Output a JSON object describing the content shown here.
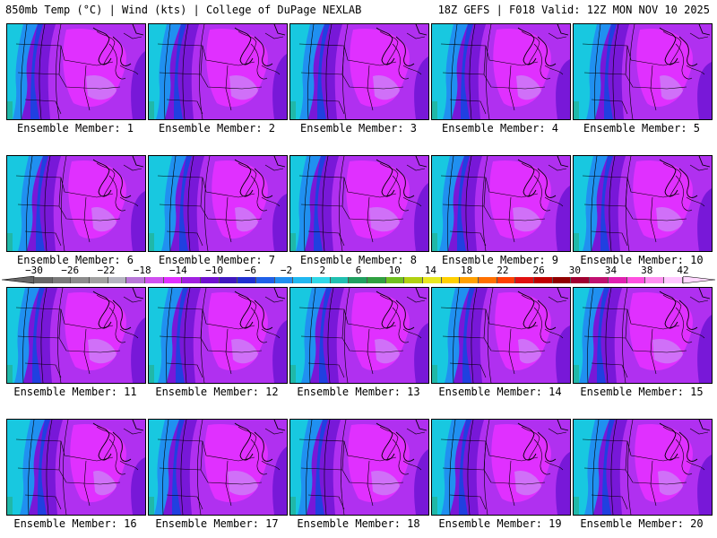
{
  "header": {
    "title_left": "850mb Temp (°C) | Wind (kts) | College of DuPage NEXLAB",
    "title_right": "18Z GEFS | F018 Valid: 12Z MON NOV 10 2025"
  },
  "colorbar": {
    "labels": [
      "−30",
      "−26",
      "−22",
      "−18",
      "−14",
      "−10",
      "−6",
      "−2",
      "2",
      "6",
      "10",
      "14",
      "18",
      "22",
      "26",
      "30",
      "34",
      "38",
      "42"
    ],
    "colors": [
      "#666666",
      "#7a7a7a",
      "#8c8c8c",
      "#a0a0a0",
      "#b4b4c0",
      "#b878d8",
      "#d050f0",
      "#e030ff",
      "#a020e0",
      "#7010d0",
      "#4018c0",
      "#2030d0",
      "#2060e8",
      "#2090f0",
      "#20b8f0",
      "#30d8e8",
      "#20c0b0",
      "#20a060",
      "#30a040",
      "#70c020",
      "#b0d010",
      "#e8e820",
      "#ffd000",
      "#ffa000",
      "#ff7000",
      "#ff4000",
      "#e01010",
      "#c00000",
      "#900000",
      "#a00030",
      "#c01070",
      "#e020b0",
      "#ff50e0",
      "#ff90f0",
      "#ffc8ff"
    ]
  },
  "captions": [
    "Ensemble Member: 1",
    "Ensemble Member: 2",
    "Ensemble Member: 3",
    "Ensemble Member: 4",
    "Ensemble Member: 5",
    "Ensemble Member: 6",
    "Ensemble Member: 7",
    "Ensemble Member: 8",
    "Ensemble Member: 9",
    "Ensemble Member: 10",
    "Ensemble Member: 11",
    "Ensemble Member: 12",
    "Ensemble Member: 13",
    "Ensemble Member: 14",
    "Ensemble Member: 15",
    "Ensemble Member: 16",
    "Ensemble Member: 17",
    "Ensemble Member: 18",
    "Ensemble Member: 19",
    "Ensemble Member: 20"
  ],
  "palette": {
    "cyan": "#18c8e0",
    "blue1": "#2090f0",
    "blue2": "#2040e0",
    "purple": "#7818d8",
    "violet": "#b030f0",
    "magenta": "#e030ff",
    "lavender": "#d070f8",
    "teal": "#20b8a8"
  }
}
